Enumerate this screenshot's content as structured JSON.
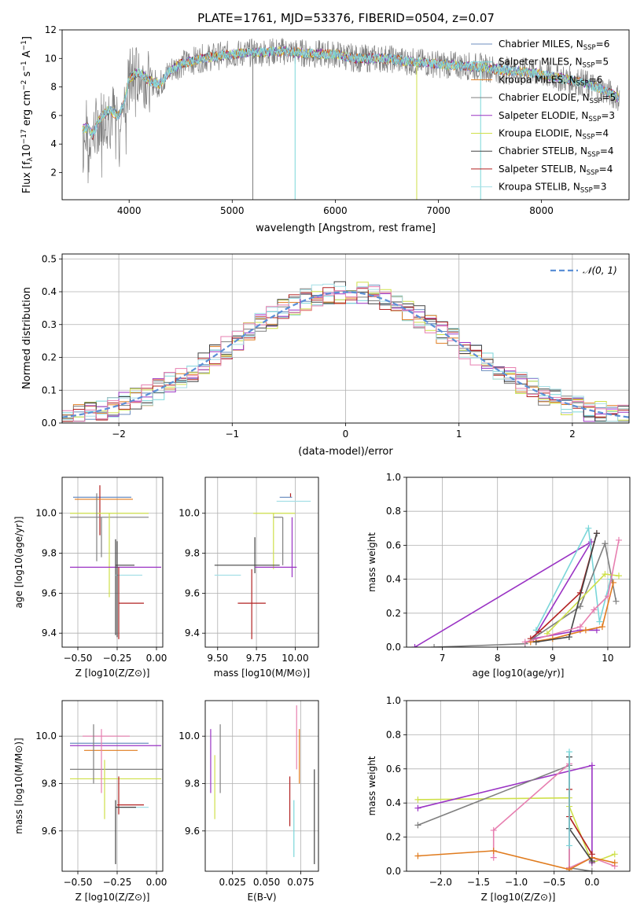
{
  "title": "PLATE=1761, MJD=53376, FIBERID=0504, z=0.07",
  "colors": [
    "#6c8ebf",
    "#7ad6d9",
    "#e07b1e",
    "#7f7f7f",
    "#9a33c4",
    "#cfe04a",
    "#444444",
    "#b22222",
    "#a5dfe6"
  ],
  "chart_data": [
    {
      "id": "spectrum",
      "type": "line",
      "title": "PLATE=1761, MJD=53376, FIBERID=0504, z=0.07",
      "xlabel": "wavelength [Angstrom, rest frame]",
      "ylabel": "Flux [f_λ 10^-17 erg cm^-2 s^-1 A^-1]",
      "xlim": [
        3350,
        8850
      ],
      "ylim": [
        0.1,
        12
      ],
      "xticks": [
        4000,
        5000,
        6000,
        7000,
        8000
      ],
      "yticks": [
        2,
        4,
        6,
        8,
        10,
        12
      ],
      "grid": false,
      "legend_position": "right",
      "legend": [
        {
          "label": "Chabrier MILES, N",
          "sub": "SSP",
          "suffix": "=6"
        },
        {
          "label": "Salpeter MILES, N",
          "sub": "SSP",
          "suffix": "=5"
        },
        {
          "label": "Kroupa MILES, N",
          "sub": "SSP",
          "suffix": "=6"
        },
        {
          "label": "Chabrier ELODIE, N",
          "sub": "SSP",
          "suffix": "=5"
        },
        {
          "label": "Salpeter ELODIE, N",
          "sub": "SSP",
          "suffix": "=3"
        },
        {
          "label": "Kroupa ELODIE, N",
          "sub": "SSP",
          "suffix": "=4"
        },
        {
          "label": "Chabrier STELIB, N",
          "sub": "SSP",
          "suffix": "=4"
        },
        {
          "label": "Salpeter STELIB, N",
          "sub": "SSP",
          "suffix": "=4"
        },
        {
          "label": "Kroupa STELIB, N",
          "sub": "SSP",
          "suffix": "=3"
        }
      ],
      "continuum": {
        "x": [
          3550,
          3600,
          3650,
          3700,
          3800,
          3900,
          3950,
          4000,
          4100,
          4200,
          4300,
          4400,
          4500,
          4700,
          5000,
          5200,
          5500,
          5800,
          6000,
          6200,
          6500,
          6700,
          7000,
          7200,
          7400,
          7600,
          7800,
          8000,
          8200,
          8400,
          8600,
          8760
        ],
        "y": [
          5.0,
          5.2,
          4.6,
          5.6,
          6.4,
          6.0,
          6.8,
          8.6,
          9.0,
          8.4,
          8.2,
          9.2,
          9.6,
          10.0,
          10.3,
          10.4,
          10.5,
          10.3,
          10.3,
          10.0,
          10.0,
          9.8,
          9.6,
          9.5,
          9.4,
          9.2,
          9.1,
          8.9,
          8.6,
          8.3,
          7.8,
          7.2
        ]
      },
      "dips": [
        {
          "x": 5200,
          "y": 0.1
        },
        {
          "x": 5610,
          "y": 0.1
        },
        {
          "x": 6790,
          "y": 0.1
        },
        {
          "x": 7410,
          "y": 0.1
        }
      ]
    },
    {
      "id": "residuals",
      "type": "histogram",
      "xlabel": "(data-model)/error",
      "ylabel": "Normed distribution",
      "xlim": [
        -2.5,
        2.5
      ],
      "ylim": [
        0,
        0.515
      ],
      "xticks": [
        -2,
        -1,
        0,
        1,
        2
      ],
      "yticks": [
        0.0,
        0.1,
        0.2,
        0.3,
        0.4,
        0.5
      ],
      "grid": true,
      "legend_position": "top-right",
      "reference_curve": {
        "label": "𝒩(0, 1)",
        "mean": 0,
        "sigma": 1
      },
      "bin_width": 0.1
    },
    {
      "id": "age-vs-Z",
      "type": "errorbar",
      "xlabel": "Z [log10(Z/Z⊙)]",
      "ylabel": "age  [log10(age/yr)]",
      "xlim": [
        -0.6,
        0.04
      ],
      "ylim": [
        9.33,
        10.18
      ],
      "xticks": [
        -0.5,
        -0.25,
        0.0
      ],
      "yticks": [
        9.4,
        9.6,
        9.8,
        10.0
      ],
      "grid": true,
      "points": [
        {
          "x": -0.33,
          "xerr": [
            0.2,
            0.17
          ],
          "y": 10.08,
          "yerr": [
            0.0,
            0.0
          ],
          "c": 0
        },
        {
          "x": -0.36,
          "xerr": [
            0.0,
            0.0
          ],
          "y": 10.04,
          "yerr": [
            0.15,
            0.1
          ],
          "c": 7
        },
        {
          "x": -0.3,
          "xerr": [
            0.22,
            0.15
          ],
          "y": 10.07,
          "yerr": [
            0.0,
            0.0
          ],
          "c": 2
        },
        {
          "x": -0.35,
          "xerr": [
            0.2,
            0.3
          ],
          "y": 9.98,
          "yerr": [
            0.2,
            0.0
          ],
          "c": 3
        },
        {
          "x": -0.3,
          "xerr": [
            0.25,
            0.25
          ],
          "y": 10.0,
          "yerr": [
            0.42,
            0.0
          ],
          "c": 5
        },
        {
          "x": -0.38,
          "xerr": [
            0.0,
            0.0
          ],
          "y": 9.98,
          "yerr": [
            0.22,
            0.12
          ],
          "c": 3
        },
        {
          "x": -0.25,
          "xerr": [
            0.3,
            0.28
          ],
          "y": 9.73,
          "yerr": [
            0.0,
            0.0
          ],
          "c": 4
        },
        {
          "x": -0.26,
          "xerr": [
            0.0,
            0.12
          ],
          "y": 9.74,
          "yerr": [
            0.35,
            0.13
          ],
          "c": 6
        },
        {
          "x": -0.24,
          "xerr": [
            0.02,
            0.15
          ],
          "y": 9.69,
          "yerr": [
            0.3,
            0.0
          ],
          "c": 8
        },
        {
          "x": -0.24,
          "xerr": [
            0.0,
            0.16
          ],
          "y": 9.55,
          "yerr": [
            0.18,
            0.18
          ],
          "c": 7
        },
        {
          "x": -0.25,
          "xerr": [
            0.0,
            0.0
          ],
          "y": 9.4,
          "yerr": [
            0.02,
            0.46
          ],
          "c": 6
        }
      ]
    },
    {
      "id": "age-vs-mass",
      "type": "errorbar",
      "xlabel": "mass [log10(M/M⊙)]",
      "ylabel": "",
      "xlim": [
        9.42,
        10.15
      ],
      "ylim": [
        9.33,
        10.18
      ],
      "xticks": [
        9.5,
        9.75,
        10.0
      ],
      "yticks": [
        9.4,
        9.6,
        9.8,
        10.0
      ],
      "grid": true,
      "points": [
        {
          "x": 9.97,
          "xerr": [
            0.0,
            0.0
          ],
          "y": 10.08,
          "yerr": [
            0.0,
            0.02
          ],
          "c": 7
        },
        {
          "x": 9.98,
          "xerr": [
            0.08,
            0.0
          ],
          "y": 10.08,
          "yerr": [
            0.0,
            0.0
          ],
          "c": 0
        },
        {
          "x": 9.98,
          "xerr": [
            0.1,
            0.12
          ],
          "y": 10.06,
          "yerr": [
            0.0,
            0.0
          ],
          "c": 8
        },
        {
          "x": 9.95,
          "xerr": [
            0.0,
            0.0
          ],
          "y": 10.08,
          "yerr": [
            0.0,
            0.0
          ],
          "c": 2
        },
        {
          "x": 9.86,
          "xerr": [
            0.13,
            0.14
          ],
          "y": 10.0,
          "yerr": [
            0.28,
            0.0
          ],
          "c": 5
        },
        {
          "x": 9.92,
          "xerr": [
            0.06,
            0.0
          ],
          "y": 9.98,
          "yerr": [
            0.24,
            0.0
          ],
          "c": 3
        },
        {
          "x": 9.98,
          "xerr": [
            0.0,
            0.0
          ],
          "y": 9.98,
          "yerr": [
            0.3,
            0.0
          ],
          "c": 4
        },
        {
          "x": 9.74,
          "xerr": [
            0.26,
            0.16
          ],
          "y": 9.74,
          "yerr": [
            0.04,
            0.14
          ],
          "c": 6
        },
        {
          "x": 9.8,
          "xerr": [
            0.06,
            0.21
          ],
          "y": 9.73,
          "yerr": [
            0.0,
            0.0
          ],
          "c": 4
        },
        {
          "x": 9.65,
          "xerr": [
            0.17,
            0.0
          ],
          "y": 9.69,
          "yerr": [
            0.0,
            0.0
          ],
          "c": 8
        },
        {
          "x": 9.72,
          "xerr": [
            0.09,
            0.09
          ],
          "y": 9.55,
          "yerr": [
            0.18,
            0.17
          ],
          "c": 7
        }
      ]
    },
    {
      "id": "massweight-vs-age",
      "type": "line",
      "xlabel": "age  [log10(age/yr)]",
      "ylabel": "mass weight",
      "xlim": [
        6.35,
        10.4
      ],
      "ylim": [
        0,
        1
      ],
      "xticks": [
        7,
        8,
        9,
        10
      ],
      "yticks": [
        0.0,
        0.2,
        0.4,
        0.6,
        0.8,
        1.0
      ],
      "grid": true,
      "series": [
        {
          "c": 4,
          "x": [
            6.5,
            9.7,
            8.65,
            9.5,
            9.8
          ],
          "y": [
            0.0,
            0.62,
            0.05,
            0.1,
            0.1
          ]
        },
        {
          "c": 1,
          "x": [
            8.7,
            9.65,
            9.85,
            10.05
          ],
          "y": [
            0.1,
            0.7,
            0.15,
            0.4
          ]
        },
        {
          "c": 7,
          "x": [
            8.6,
            8.75,
            9.5,
            9.8
          ],
          "y": [
            0.05,
            0.09,
            0.32,
            0.67
          ]
        },
        {
          "c": 3,
          "x": [
            6.85,
            8.5,
            9.5,
            9.95,
            10.15
          ],
          "y": [
            0.0,
            0.02,
            0.24,
            0.61,
            0.27
          ]
        },
        {
          "c": 2,
          "x": [
            8.6,
            9.0,
            9.6,
            9.9,
            10.1
          ],
          "y": [
            0.03,
            0.05,
            0.1,
            0.12,
            0.38
          ]
        },
        {
          "c": 5,
          "x": [
            8.9,
            9.95,
            10.2
          ],
          "y": [
            0.08,
            0.43,
            0.42
          ]
        },
        {
          "c": 6,
          "x": [
            8.7,
            9.3,
            9.8
          ],
          "y": [
            0.03,
            0.06,
            0.67
          ]
        },
        {
          "c": 9,
          "x": [
            8.5,
            9.5,
            9.75,
            10.0,
            10.2
          ],
          "y": [
            0.03,
            0.12,
            0.22,
            0.3,
            0.63
          ]
        }
      ]
    },
    {
      "id": "mass-vs-Z",
      "type": "errorbar",
      "xlabel": "Z [log10(Z/Z⊙)]",
      "ylabel": "mass [log10(M/M⊙)]",
      "xlim": [
        -0.6,
        0.04
      ],
      "ylim": [
        9.43,
        10.15
      ],
      "xticks": [
        -0.5,
        -0.25,
        0.0
      ],
      "yticks": [
        9.6,
        9.8,
        10.0
      ],
      "grid": true,
      "points": [
        {
          "x": -0.3,
          "xerr": [
            0.17,
            0.13
          ],
          "y": 10.0,
          "yerr": [
            0.0,
            0.0
          ],
          "c": 9
        },
        {
          "x": -0.3,
          "xerr": [
            0.25,
            0.25
          ],
          "y": 9.97,
          "yerr": [
            0.0,
            0.0
          ],
          "c": 0
        },
        {
          "x": -0.25,
          "xerr": [
            0.3,
            0.28
          ],
          "y": 9.96,
          "yerr": [
            0.0,
            0.0
          ],
          "c": 4
        },
        {
          "x": -0.28,
          "xerr": [
            0.18,
            0.16
          ],
          "y": 9.94,
          "yerr": [
            0.0,
            0.0
          ],
          "c": 2
        },
        {
          "x": -0.3,
          "xerr": [
            0.25,
            0.35
          ],
          "y": 9.86,
          "yerr": [
            0.0,
            0.0
          ],
          "c": 3
        },
        {
          "x": -0.3,
          "xerr": [
            0.25,
            0.33
          ],
          "y": 9.82,
          "yerr": [
            0.0,
            0.0
          ],
          "c": 5
        },
        {
          "x": -0.35,
          "xerr": [
            0.0,
            0.0
          ],
          "y": 9.9,
          "yerr": [
            0.14,
            0.13
          ],
          "c": 9
        },
        {
          "x": -0.4,
          "xerr": [
            0.0,
            0.0
          ],
          "y": 9.9,
          "yerr": [
            0.1,
            0.15
          ],
          "c": 3
        },
        {
          "x": -0.33,
          "xerr": [
            0.0,
            0.0
          ],
          "y": 9.8,
          "yerr": [
            0.15,
            0.1
          ],
          "c": 5
        },
        {
          "x": -0.24,
          "xerr": [
            0.0,
            0.0
          ],
          "y": 9.75,
          "yerr": [
            0.08,
            0.08
          ],
          "c": 7
        },
        {
          "x": -0.2,
          "xerr": [
            0.05,
            0.12
          ],
          "y": 9.71,
          "yerr": [
            0.0,
            0.0
          ],
          "c": 7
        },
        {
          "x": -0.23,
          "xerr": [
            0.03,
            0.18
          ],
          "y": 9.7,
          "yerr": [
            0.0,
            0.0
          ],
          "c": 8
        },
        {
          "x": -0.26,
          "xerr": [
            0.0,
            0.13
          ],
          "y": 9.7,
          "yerr": [
            0.24,
            0.03
          ],
          "c": 6
        }
      ]
    },
    {
      "id": "mass-vs-ebv",
      "type": "errorbar",
      "xlabel": "E(B-V)",
      "ylabel": "",
      "xlim": [
        0.005,
        0.088
      ],
      "ylim": [
        9.43,
        10.15
      ],
      "xticks": [
        0.025,
        0.05,
        0.075
      ],
      "yticks": [
        9.6,
        9.8,
        10.0
      ],
      "grid": true,
      "points": [
        {
          "x": 0.009,
          "y": 9.9,
          "yerr": [
            0.14,
            0.13
          ],
          "c": 4
        },
        {
          "x": 0.012,
          "y": 9.79,
          "yerr": [
            0.14,
            0.13
          ],
          "c": 5
        },
        {
          "x": 0.016,
          "y": 9.9,
          "yerr": [
            0.14,
            0.15
          ],
          "c": 3
        },
        {
          "x": 0.067,
          "y": 9.72,
          "yerr": [
            0.1,
            0.11
          ],
          "c": 7
        },
        {
          "x": 0.07,
          "y": 9.61,
          "yerr": [
            0.12,
            0.12
          ],
          "c": 1
        },
        {
          "x": 0.072,
          "y": 9.98,
          "yerr": [
            0.12,
            0.15
          ],
          "c": 9
        },
        {
          "x": 0.074,
          "y": 9.88,
          "yerr": [
            0.08,
            0.15
          ],
          "c": 2
        },
        {
          "x": 0.085,
          "y": 9.66,
          "yerr": [
            0.2,
            0.2
          ],
          "c": 6
        }
      ]
    },
    {
      "id": "massweight-vs-Z",
      "type": "line",
      "xlabel": "Z [log10(Z/Z⊙)]",
      "ylabel": "mass weight",
      "xlim": [
        -2.45,
        0.5
      ],
      "ylim": [
        0,
        1
      ],
      "xticks": [
        -2.0,
        -1.5,
        -1.0,
        -0.5,
        0.0
      ],
      "yticks": [
        0.0,
        0.2,
        0.4,
        0.6,
        0.8,
        1.0
      ],
      "grid": true,
      "series": [
        {
          "c": 5,
          "x": [
            -2.3,
            -0.3,
            -0.3,
            0.0,
            0.3
          ],
          "y": [
            0.42,
            0.43,
            0.38,
            0.05,
            0.1
          ]
        },
        {
          "c": 4,
          "x": [
            -2.3,
            0.0,
            0.0
          ],
          "y": [
            0.37,
            0.62,
            0.05
          ]
        },
        {
          "c": 3,
          "x": [
            -2.3,
            -0.3,
            -0.3,
            0.0
          ],
          "y": [
            0.27,
            0.62,
            0.02,
            0.0
          ]
        },
        {
          "c": 9,
          "x": [
            -1.3,
            -1.3,
            -0.3,
            -0.3,
            0.0,
            0.3
          ],
          "y": [
            0.08,
            0.24,
            0.63,
            0.02,
            0.08,
            0.03
          ]
        },
        {
          "c": 2,
          "x": [
            -2.3,
            -1.3,
            -0.3,
            0.0,
            0.3
          ],
          "y": [
            0.09,
            0.12,
            0.01,
            0.08,
            0.05
          ]
        },
        {
          "c": 6,
          "x": [
            -0.3,
            -0.3,
            0.0
          ],
          "y": [
            0.67,
            0.25,
            0.06
          ]
        },
        {
          "c": 7,
          "x": [
            -0.3,
            -0.3,
            0.0
          ],
          "y": [
            0.48,
            0.32,
            0.1
          ]
        },
        {
          "c": 1,
          "x": [
            -0.3,
            -0.3
          ],
          "y": [
            0.7,
            0.15
          ]
        }
      ]
    }
  ]
}
